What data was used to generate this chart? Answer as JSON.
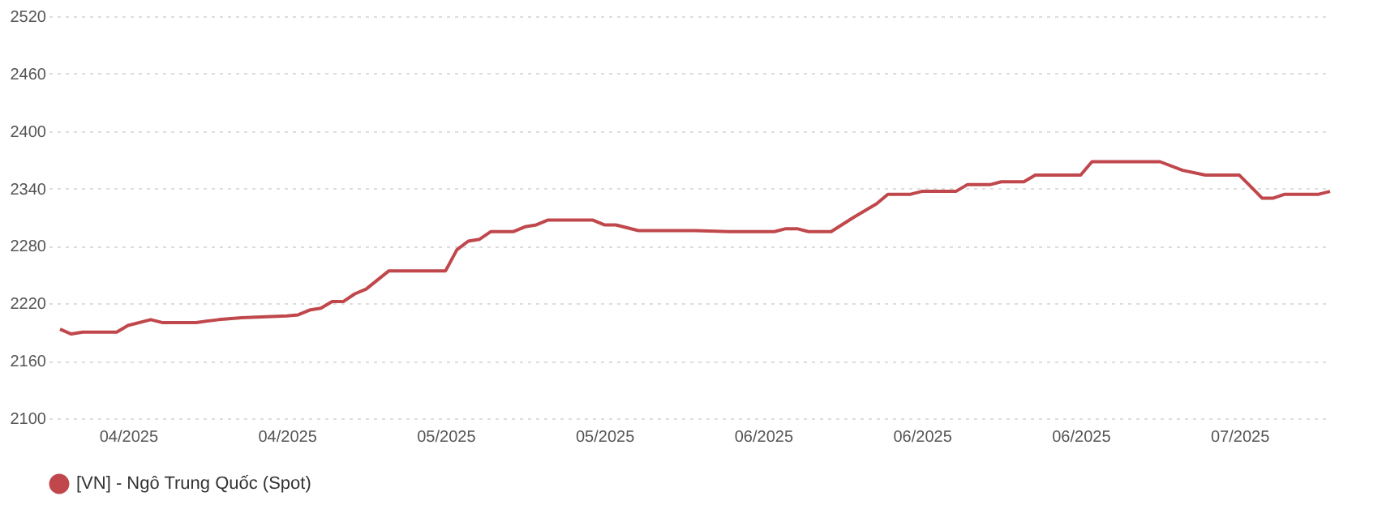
{
  "chart_data": {
    "type": "line",
    "x": [
      "2025-03-31",
      "2025-04-01",
      "2025-04-02",
      "2025-04-05",
      "2025-04-06",
      "2025-04-08",
      "2025-04-09",
      "2025-04-12",
      "2025-04-14",
      "2025-04-16",
      "2025-04-20",
      "2025-04-21",
      "2025-04-22",
      "2025-04-23",
      "2025-04-24",
      "2025-04-25",
      "2025-04-26",
      "2025-04-27",
      "2025-04-29",
      "2025-05-04",
      "2025-05-05",
      "2025-05-06",
      "2025-05-07",
      "2025-05-08",
      "2025-05-10",
      "2025-05-11",
      "2025-05-12",
      "2025-05-13",
      "2025-05-17",
      "2025-05-18",
      "2025-05-19",
      "2025-05-21",
      "2025-05-26",
      "2025-05-29",
      "2025-06-02",
      "2025-06-03",
      "2025-06-04",
      "2025-06-05",
      "2025-06-07",
      "2025-06-09",
      "2025-06-11",
      "2025-06-12",
      "2025-06-14",
      "2025-06-15",
      "2025-06-18",
      "2025-06-19",
      "2025-06-21",
      "2025-06-22",
      "2025-06-24",
      "2025-06-25",
      "2025-06-29",
      "2025-06-30",
      "2025-07-06",
      "2025-07-08",
      "2025-07-10",
      "2025-07-13",
      "2025-07-14",
      "2025-07-15",
      "2025-07-16",
      "2025-07-17",
      "2025-07-20",
      "2025-07-21"
    ],
    "series": [
      {
        "name": "[VN] - Ngô Trung Quốc (Spot)",
        "color": "#c0474b",
        "values": [
          2193,
          2188,
          2190,
          2190,
          2197,
          2203,
          2200,
          2200,
          2203,
          2205,
          2207,
          2208,
          2213,
          2215,
          2222,
          2222,
          2230,
          2235,
          2254,
          2254,
          2276,
          2285,
          2287,
          2295,
          2295,
          2300,
          2302,
          2307,
          2307,
          2302,
          2302,
          2296,
          2296,
          2295,
          2295,
          2298,
          2298,
          2295,
          2295,
          2310,
          2324,
          2334,
          2334,
          2337,
          2337,
          2344,
          2344,
          2347,
          2347,
          2354,
          2354,
          2368,
          2368,
          2359,
          2354,
          2354,
          2342,
          2330,
          2330,
          2334,
          2334,
          2337
        ]
      }
    ],
    "xlim": [
      "2025-03-30",
      "2025-07-21"
    ],
    "xticks": [
      {
        "value": "2025-04-06",
        "label": "04/2025"
      },
      {
        "value": "2025-04-20",
        "label": "04/2025"
      },
      {
        "value": "2025-05-04",
        "label": "05/2025"
      },
      {
        "value": "2025-05-18",
        "label": "05/2025"
      },
      {
        "value": "2025-06-01",
        "label": "06/2025"
      },
      {
        "value": "2025-06-15",
        "label": "06/2025"
      },
      {
        "value": "2025-06-29",
        "label": "06/2025"
      },
      {
        "value": "2025-07-13",
        "label": "07/2025"
      }
    ],
    "ylim": [
      2100,
      2520
    ],
    "yticks": [
      2100,
      2160,
      2220,
      2280,
      2340,
      2400,
      2460,
      2520
    ],
    "grid": "y",
    "legend": "bottom",
    "marker": "none",
    "line_style": "solid"
  }
}
